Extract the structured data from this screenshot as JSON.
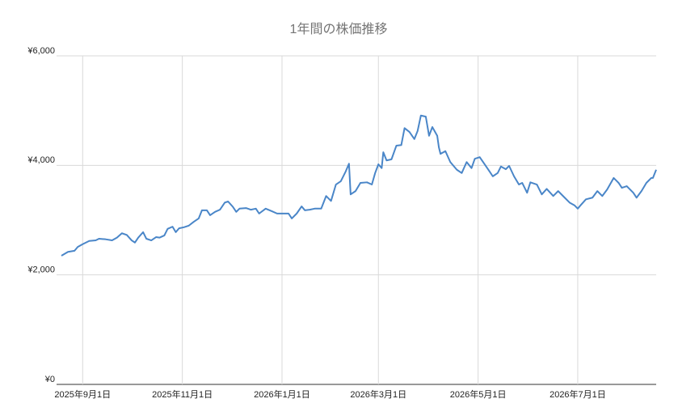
{
  "chart_data": {
    "type": "line",
    "title": "1年間の株価推移",
    "color": "#4a86c8",
    "grid": true,
    "xlim": [
      "2025-08-19",
      "2026-08-18"
    ],
    "xticks": [
      {
        "value": "2025-09-01",
        "label": "2025年9月1日"
      },
      {
        "value": "2025-11-01",
        "label": "2025年11月1日"
      },
      {
        "value": "2026-01-01",
        "label": "2026年1月1日"
      },
      {
        "value": "2026-03-01",
        "label": "2026年3月1日"
      },
      {
        "value": "2026-05-01",
        "label": "2026年5月1日"
      },
      {
        "value": "2026-07-01",
        "label": "2026年7月1日"
      }
    ],
    "ylim": [
      0,
      6000
    ],
    "yticks": [
      {
        "value": 0,
        "label": "¥0"
      },
      {
        "value": 2000,
        "label": "¥2,000"
      },
      {
        "value": 4000,
        "label": "¥4,000"
      },
      {
        "value": 6000,
        "label": "¥6,000"
      }
    ],
    "x": [
      "2025-08-19",
      "2025-08-23",
      "2025-08-27",
      "2025-08-29",
      "2025-09-01",
      "2025-09-05",
      "2025-09-09",
      "2025-09-11",
      "2025-09-15",
      "2025-09-19",
      "2025-09-22",
      "2025-09-25",
      "2025-09-28",
      "2025-10-01",
      "2025-10-03",
      "2025-10-05",
      "2025-10-08",
      "2025-10-10",
      "2025-10-13",
      "2025-10-16",
      "2025-10-18",
      "2025-10-21",
      "2025-10-23",
      "2025-10-26",
      "2025-10-28",
      "2025-10-30",
      "2025-11-02",
      "2025-11-05",
      "2025-11-08",
      "2025-11-11",
      "2025-11-13",
      "2025-11-16",
      "2025-11-18",
      "2025-11-21",
      "2025-11-24",
      "2025-11-27",
      "2025-11-29",
      "2025-12-02",
      "2025-12-04",
      "2025-12-06",
      "2025-12-10",
      "2025-12-13",
      "2025-12-16",
      "2025-12-18",
      "2025-12-22",
      "2025-12-26",
      "2025-12-29",
      "2026-01-02",
      "2026-01-05",
      "2026-01-07",
      "2026-01-10",
      "2026-01-13",
      "2026-01-15",
      "2026-01-18",
      "2026-01-21",
      "2026-01-25",
      "2026-01-28",
      "2026-01-31",
      "2026-02-03",
      "2026-02-06",
      "2026-02-09",
      "2026-02-11",
      "2026-02-12",
      "2026-02-15",
      "2026-02-18",
      "2026-02-22",
      "2026-02-25",
      "2026-02-27",
      "2026-03-01",
      "2026-03-03",
      "2026-03-04",
      "2026-03-06",
      "2026-03-09",
      "2026-03-12",
      "2026-03-15",
      "2026-03-17",
      "2026-03-20",
      "2026-03-23",
      "2026-03-25",
      "2026-03-27",
      "2026-03-30",
      "2026-04-01",
      "2026-04-03",
      "2026-04-06",
      "2026-04-07",
      "2026-04-08",
      "2026-04-11",
      "2026-04-14",
      "2026-04-16",
      "2026-04-18",
      "2026-04-21",
      "2026-04-24",
      "2026-04-27",
      "2026-04-29",
      "2026-05-02",
      "2026-05-05",
      "2026-05-08",
      "2026-05-10",
      "2026-05-13",
      "2026-05-15",
      "2026-05-18",
      "2026-05-20",
      "2026-05-23",
      "2026-05-26",
      "2026-05-28",
      "2026-05-31",
      "2026-06-02",
      "2026-06-06",
      "2026-06-09",
      "2026-06-12",
      "2026-06-16",
      "2026-06-19",
      "2026-06-23",
      "2026-06-26",
      "2026-06-29",
      "2026-07-01",
      "2026-07-03",
      "2026-07-06",
      "2026-07-10",
      "2026-07-13",
      "2026-07-16",
      "2026-07-19",
      "2026-07-23",
      "2026-07-26",
      "2026-07-28",
      "2026-07-31",
      "2026-08-04",
      "2026-08-06",
      "2026-08-09",
      "2026-08-12",
      "2026-08-15",
      "2026-08-16",
      "2026-08-18"
    ],
    "values": [
      2350,
      2420,
      2440,
      2510,
      2560,
      2620,
      2630,
      2660,
      2650,
      2630,
      2680,
      2760,
      2730,
      2630,
      2590,
      2680,
      2780,
      2660,
      2630,
      2690,
      2680,
      2720,
      2840,
      2880,
      2780,
      2850,
      2870,
      2900,
      2970,
      3030,
      3180,
      3180,
      3090,
      3150,
      3190,
      3320,
      3340,
      3240,
      3150,
      3210,
      3220,
      3190,
      3210,
      3120,
      3210,
      3160,
      3120,
      3120,
      3120,
      3030,
      3120,
      3250,
      3180,
      3190,
      3210,
      3210,
      3440,
      3350,
      3650,
      3710,
      3890,
      4030,
      3470,
      3530,
      3680,
      3690,
      3650,
      3860,
      4020,
      3950,
      4240,
      4090,
      4110,
      4360,
      4370,
      4680,
      4610,
      4480,
      4630,
      4910,
      4890,
      4540,
      4700,
      4540,
      4330,
      4210,
      4260,
      4060,
      3990,
      3920,
      3860,
      4060,
      3950,
      4120,
      4150,
      4020,
      3890,
      3800,
      3860,
      3980,
      3930,
      3990,
      3800,
      3650,
      3680,
      3500,
      3690,
      3650,
      3470,
      3570,
      3440,
      3530,
      3410,
      3320,
      3270,
      3210,
      3280,
      3380,
      3410,
      3530,
      3440,
      3560,
      3770,
      3680,
      3590,
      3620,
      3500,
      3410,
      3530,
      3680,
      3770,
      3770,
      3920
    ]
  }
}
